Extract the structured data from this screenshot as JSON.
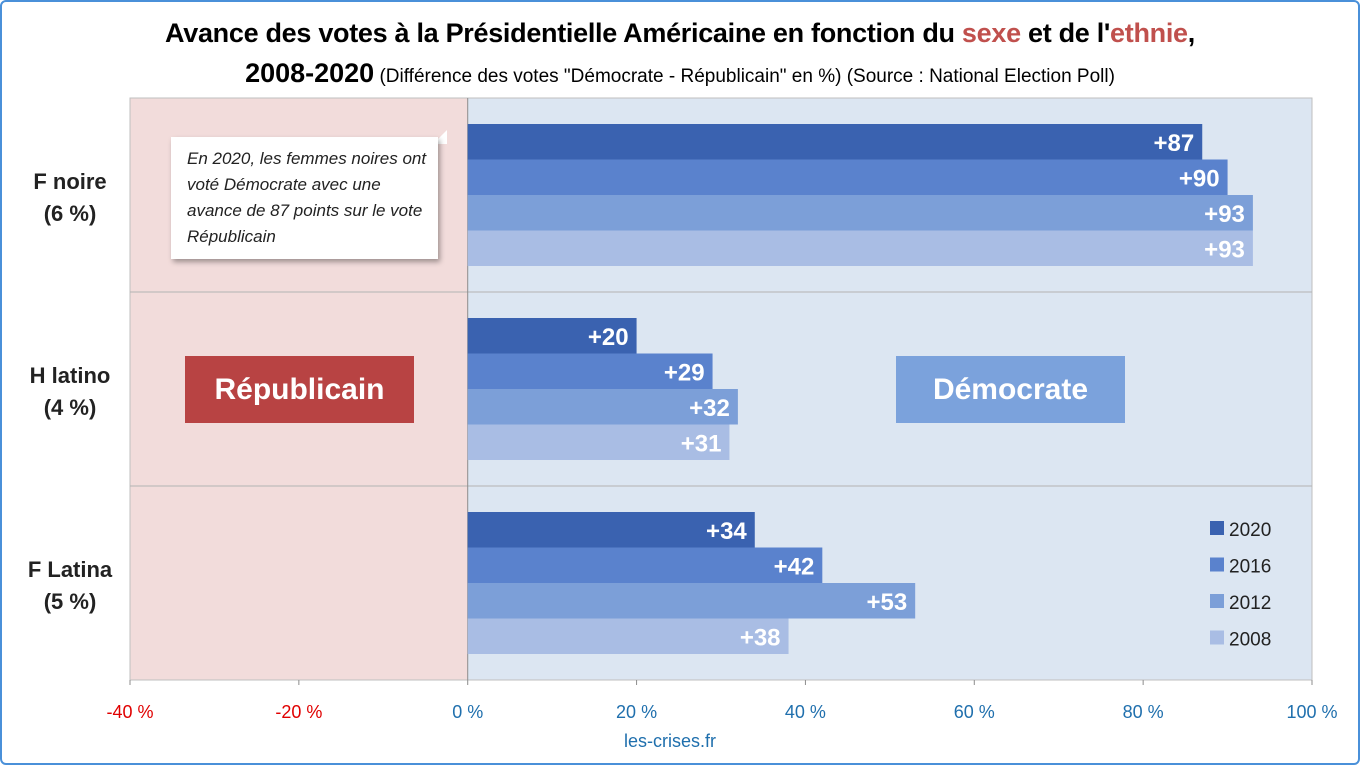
{
  "title": {
    "part1": "Avance des votes à la Présidentielle Américaine en fonction du ",
    "sexe": "sexe",
    "part2": " et de l'",
    "ethnie": "ethnie",
    "part3": ",",
    "years": "2008-2020",
    "subtitle": " (Différence des votes \"Démocrate - Républicain\" en %) (Source : National Election Poll)"
  },
  "annotation": "En 2020, les femmes noires ont voté Démocrate avec une avance de 87 points sur le vote Républicain",
  "zones": {
    "republican": "Républicain",
    "democrat": "Démocrate"
  },
  "source": "les-crises.fr",
  "colors": {
    "rep_zone": "#f2dcdb",
    "dem_zone": "#dce6f2",
    "rep_label_bg": "#b84343",
    "dem_label_bg": "#7ba2dc",
    "negative_tick": "#e00000",
    "positive_tick": "#1f6fad"
  },
  "chart_data": {
    "type": "bar",
    "orientation": "horizontal",
    "categories": [
      "F noire\n(6 %)",
      "H latino\n(4 %)",
      "F Latina\n(5 %)"
    ],
    "series": [
      {
        "name": "2020",
        "color": "#3a62b0",
        "values": [
          87,
          20,
          34
        ],
        "labels": [
          "+87",
          "+20",
          "+34"
        ]
      },
      {
        "name": "2016",
        "color": "#5a82cd",
        "values": [
          90,
          29,
          42
        ],
        "labels": [
          "+90",
          "+29",
          "+42"
        ]
      },
      {
        "name": "2012",
        "color": "#7c9fd8",
        "values": [
          93,
          32,
          53
        ],
        "labels": [
          "+93",
          "+32",
          "+53"
        ]
      },
      {
        "name": "2008",
        "color": "#a9bde4",
        "values": [
          93,
          31,
          38
        ],
        "labels": [
          "+93",
          "+31",
          "+38"
        ]
      }
    ],
    "xlim": [
      -40,
      100
    ],
    "xticks": [
      -40,
      -20,
      0,
      20,
      40,
      60,
      80,
      100
    ],
    "xtick_labels": [
      "-40 %",
      "-20 %",
      "0 %",
      "20 %",
      "40 %",
      "60 %",
      "80 %",
      "100 %"
    ],
    "legend_position": "bottom-right",
    "grid": "horizontal category separators"
  }
}
